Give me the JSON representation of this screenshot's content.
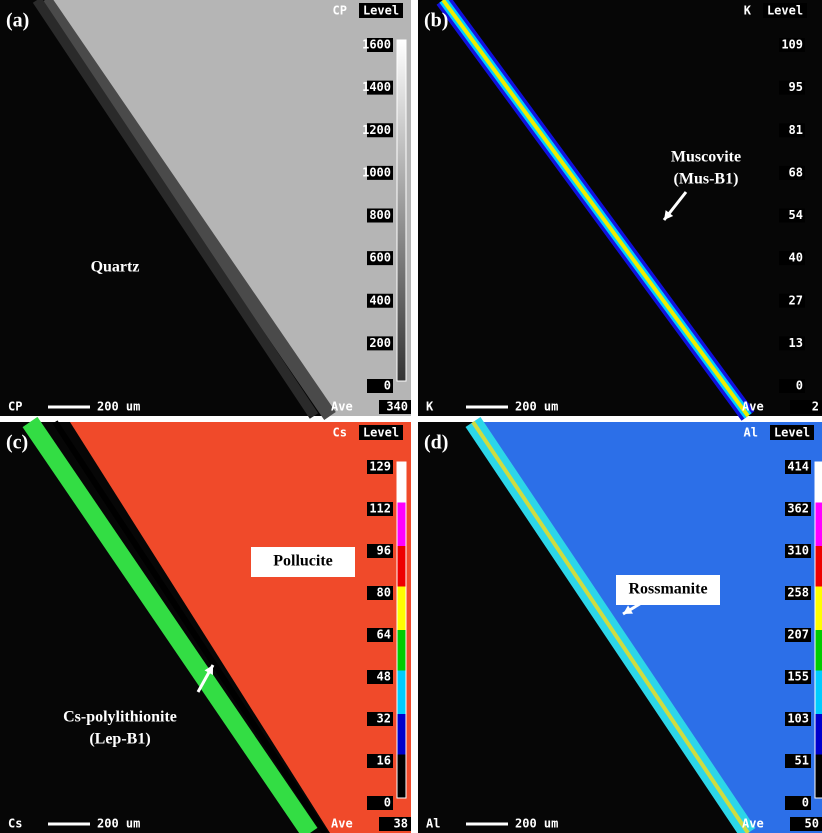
{
  "panels": [
    {
      "label": "(a)",
      "element": "CP",
      "level_title": "Level",
      "levels": [
        1600,
        1400,
        1200,
        1000,
        800,
        600,
        400,
        200,
        0
      ],
      "scale_element": "CP",
      "scale_bar": "200 um",
      "ave": "Ave",
      "ave_value": "340",
      "annotations": [
        {
          "lines": [
            "Quartz"
          ]
        }
      ]
    },
    {
      "label": "(b)",
      "element": "K",
      "level_title": "Level",
      "levels": [
        109,
        95,
        81,
        68,
        54,
        40,
        27,
        13,
        0
      ],
      "scale_element": "K",
      "scale_bar": "200 um",
      "ave": "Ave",
      "ave_value": "2",
      "annotations": [
        {
          "lines": [
            "Muscovite",
            "(Mus-B1)"
          ]
        }
      ]
    },
    {
      "label": "(c)",
      "element": "Cs",
      "level_title": "Level",
      "levels": [
        129,
        112,
        96,
        80,
        64,
        48,
        32,
        16,
        0
      ],
      "scale_element": "Cs",
      "scale_bar": "200 um",
      "ave": "Ave",
      "ave_value": "38",
      "annotations": [
        {
          "lines": [
            "Pollucite"
          ]
        },
        {
          "lines": [
            "Cs-polylithionite",
            "(Lep-B1)"
          ]
        }
      ]
    },
    {
      "label": "(d)",
      "element": "Al",
      "level_title": "Level",
      "levels": [
        414,
        362,
        310,
        258,
        207,
        155,
        103,
        51,
        0
      ],
      "scale_element": "Al",
      "scale_bar": "200 um",
      "ave": "Ave",
      "ave_value": "50",
      "annotations": [
        {
          "lines": [
            "Rossmanite"
          ]
        }
      ]
    }
  ]
}
